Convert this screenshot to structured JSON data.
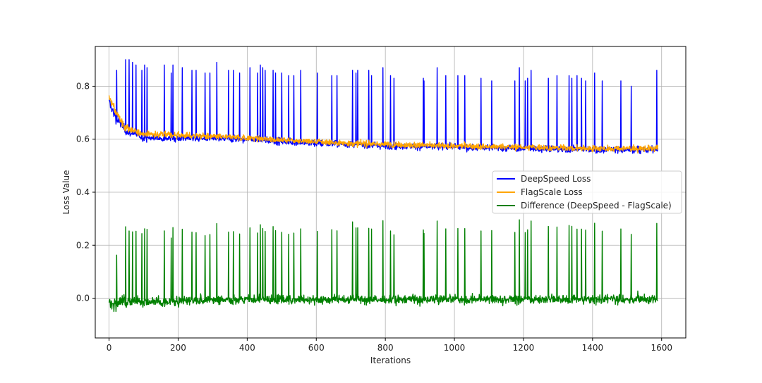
{
  "chart_data": {
    "type": "line",
    "title": "",
    "xlabel": "Iterations",
    "ylabel": "Loss Value",
    "xlim": [
      -40,
      1670
    ],
    "ylim": [
      -0.15,
      0.95
    ],
    "x_ticks": [
      0,
      200,
      400,
      600,
      800,
      1000,
      1200,
      1400,
      1600
    ],
    "y_ticks": [
      0.0,
      0.2,
      0.4,
      0.6,
      0.8
    ],
    "x_tick_labels": [
      "0",
      "200",
      "400",
      "600",
      "800",
      "1000",
      "1200",
      "1400",
      "1600"
    ],
    "y_tick_labels": [
      "0.0",
      "0.2",
      "0.4",
      "0.6",
      "0.8"
    ],
    "grid": true,
    "legend_position": "center-right",
    "n_points": 1590,
    "series": [
      {
        "name": "DeepSpeed Loss",
        "color": "#0000ff",
        "trend": [
          [
            0,
            0.74
          ],
          [
            20,
            0.68
          ],
          [
            50,
            0.63
          ],
          [
            100,
            0.605
          ],
          [
            200,
            0.605
          ],
          [
            400,
            0.6
          ],
          [
            600,
            0.585
          ],
          [
            800,
            0.575
          ],
          [
            1000,
            0.57
          ],
          [
            1200,
            0.565
          ],
          [
            1400,
            0.56
          ],
          [
            1590,
            0.56
          ]
        ],
        "spikes": [
          [
            22,
            0.86
          ],
          [
            48,
            0.9
          ],
          [
            58,
            0.9
          ],
          [
            68,
            0.89
          ],
          [
            78,
            0.88
          ],
          [
            95,
            0.86
          ],
          [
            103,
            0.88
          ],
          [
            110,
            0.87
          ],
          [
            160,
            0.88
          ],
          [
            180,
            0.85
          ],
          [
            185,
            0.88
          ],
          [
            212,
            0.87
          ],
          [
            240,
            0.86
          ],
          [
            252,
            0.86
          ],
          [
            278,
            0.85
          ],
          [
            292,
            0.85
          ],
          [
            312,
            0.89
          ],
          [
            346,
            0.86
          ],
          [
            360,
            0.86
          ],
          [
            378,
            0.85
          ],
          [
            408,
            0.87
          ],
          [
            430,
            0.85
          ],
          [
            438,
            0.88
          ],
          [
            445,
            0.87
          ],
          [
            452,
            0.86
          ],
          [
            475,
            0.86
          ],
          [
            482,
            0.85
          ],
          [
            500,
            0.85
          ],
          [
            520,
            0.84
          ],
          [
            535,
            0.84
          ],
          [
            555,
            0.86
          ],
          [
            603,
            0.85
          ],
          [
            645,
            0.84
          ],
          [
            660,
            0.84
          ],
          [
            705,
            0.86
          ],
          [
            715,
            0.85
          ],
          [
            720,
            0.86
          ],
          [
            752,
            0.86
          ],
          [
            760,
            0.84
          ],
          [
            793,
            0.87
          ],
          [
            815,
            0.84
          ],
          [
            825,
            0.83
          ],
          [
            910,
            0.83
          ],
          [
            912,
            0.82
          ],
          [
            950,
            0.87
          ],
          [
            975,
            0.84
          ],
          [
            1010,
            0.84
          ],
          [
            1030,
            0.84
          ],
          [
            1077,
            0.83
          ],
          [
            1108,
            0.82
          ],
          [
            1175,
            0.82
          ],
          [
            1188,
            0.87
          ],
          [
            1205,
            0.82
          ],
          [
            1212,
            0.83
          ],
          [
            1222,
            0.86
          ],
          [
            1272,
            0.83
          ],
          [
            1297,
            0.84
          ],
          [
            1332,
            0.84
          ],
          [
            1340,
            0.83
          ],
          [
            1355,
            0.84
          ],
          [
            1368,
            0.83
          ],
          [
            1380,
            0.82
          ],
          [
            1406,
            0.85
          ],
          [
            1428,
            0.82
          ],
          [
            1482,
            0.82
          ],
          [
            1512,
            0.8
          ],
          [
            1586,
            0.86
          ]
        ]
      },
      {
        "name": "FlagScale Loss",
        "color": "#ffa500",
        "trend": [
          [
            0,
            0.76
          ],
          [
            20,
            0.7
          ],
          [
            50,
            0.64
          ],
          [
            100,
            0.62
          ],
          [
            200,
            0.615
          ],
          [
            400,
            0.605
          ],
          [
            600,
            0.59
          ],
          [
            800,
            0.58
          ],
          [
            1000,
            0.575
          ],
          [
            1200,
            0.57
          ],
          [
            1400,
            0.565
          ],
          [
            1590,
            0.565
          ]
        ]
      },
      {
        "name": "Difference (DeepSpeed - FlagScale)",
        "color": "#008000",
        "trend": [
          [
            0,
            -0.01
          ],
          [
            1590,
            -0.01
          ]
        ]
      }
    ]
  }
}
